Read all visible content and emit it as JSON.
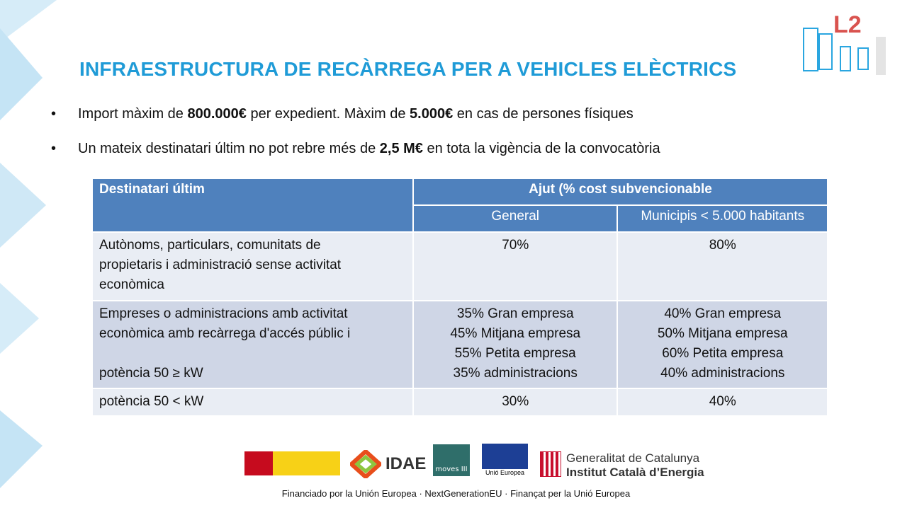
{
  "header": {
    "title": "INFRAESTRUCTURA DE RECÀRREGA PER A VEHICLES ELÈCTRICS",
    "badge": "L2"
  },
  "bullets": [
    {
      "parts": [
        "Import màxim de ",
        "800.000€",
        " per expedient. Màxim de ",
        "5.000€",
        " en cas de persones físiques"
      ]
    },
    {
      "parts": [
        "Un mateix destinatari últim no pot rebre més de ",
        "2,5 M€",
        " en tota la vigència de la convocatòria"
      ]
    }
  ],
  "table": {
    "header": {
      "recipient": "Destinatari últim",
      "aid": "Ajut (% cost subvencionable",
      "general": "General",
      "municipalities": "Municipis < 5.000 habitants"
    },
    "rows": [
      [
        [
          "Autònoms, particulars, comunitats de",
          "propietaris i administració sense activitat",
          "econòmica"
        ],
        [
          "70%"
        ],
        [
          "80%"
        ]
      ],
      [
        [
          "Empreses o administracions amb activitat",
          "econòmica amb recàrrega d'accés públic i",
          null,
          "potència 50 ≥ kW"
        ],
        [
          "35% Gran empresa",
          "45% Mitjana empresa",
          "55% Petita empresa",
          "35% administracions"
        ],
        [
          "40% Gran empresa",
          "50% Mitjana empresa",
          "60% Petita empresa",
          "40% administracions"
        ]
      ],
      [
        [
          "potència 50 < kW"
        ],
        [
          "30%"
        ],
        [
          "40%"
        ]
      ]
    ]
  },
  "logos": {
    "idae": "IDAE",
    "moves": "moves III",
    "eu": "Unió Europea",
    "generalitat": "Generalitat de Catalunya",
    "icaen": "Institut Català d’Energia"
  },
  "footer": "Financiado por la Unión  Europea · NextGenerationEU · Finançat per la Unió Europea"
}
